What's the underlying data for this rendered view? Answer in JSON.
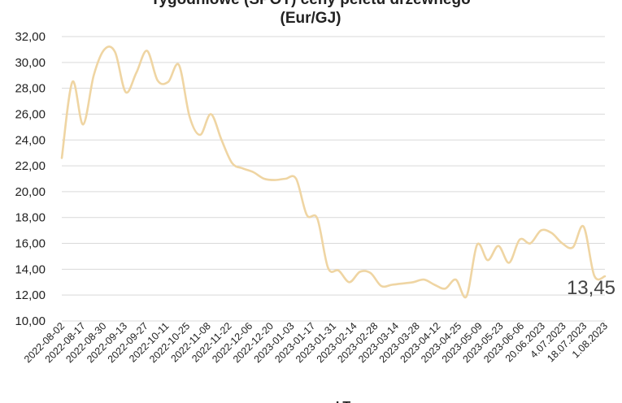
{
  "chart_data": {
    "type": "line",
    "title_line1": "Tygodniowe (SPOT) ceny peletu drzewnego",
    "title_line2": "(Eur/GJ)",
    "ylim": [
      10,
      32
    ],
    "yticks": [
      10,
      12,
      14,
      16,
      18,
      20,
      22,
      24,
      26,
      28,
      30,
      32
    ],
    "ytick_labels": [
      "10,00",
      "12,00",
      "14,00",
      "16,00",
      "18,00",
      "20,00",
      "22,00",
      "24,00",
      "26,00",
      "28,00",
      "30,00",
      "32,00"
    ],
    "x_labels": [
      "2022-08-02",
      "2022-08-17",
      "2022-08-30",
      "2022-09-13",
      "2022-09-27",
      "2022-10-11",
      "2022-10-25",
      "2022-11-08",
      "2022-11-22",
      "2022-12-06",
      "2022-12-20",
      "2023-01-03",
      "2023-01-17",
      "2023-01-31",
      "2023-02-14",
      "2023-02-28",
      "2023-03-14",
      "2023-03-28",
      "2023-04-12",
      "2023-04-25",
      "2023-05-09",
      "2023-05-23",
      "2023-06-06",
      "20.06.2023",
      "4.07.2023",
      "18.07.2023",
      "1.08.2023"
    ],
    "grid": true,
    "line_color": "#efd5a3",
    "series": [
      {
        "values": [
          22.6,
          28.5,
          25.2,
          29.0,
          31.0,
          30.8,
          27.7,
          29.2,
          30.9,
          28.6,
          28.5,
          29.8,
          25.8,
          24.4,
          26.0,
          24.0,
          22.2,
          21.8,
          21.5,
          21.0,
          20.9,
          21.0,
          21.0,
          18.2,
          17.9,
          14.1,
          13.9,
          13.0,
          13.8,
          13.7,
          12.7,
          12.8,
          12.9,
          13.0,
          13.2,
          12.8,
          12.5,
          13.2,
          11.9,
          15.9,
          14.7,
          15.8,
          14.5,
          16.3,
          16.0,
          17.0,
          16.8,
          16.0,
          15.7,
          17.3,
          13.5,
          13.45
        ]
      }
    ],
    "annotation": "13,45",
    "legend_label": "LT"
  }
}
